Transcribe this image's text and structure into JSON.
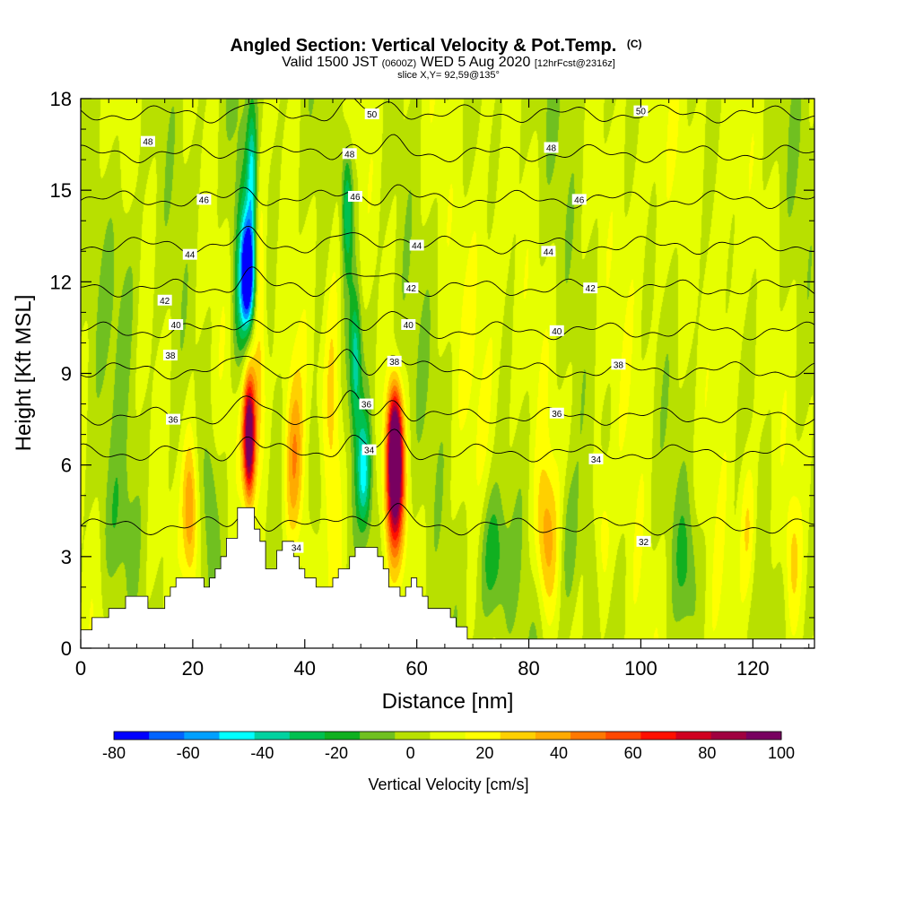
{
  "title": {
    "main": "Angled Section: Vertical Velocity & Pot.Temp.",
    "units": "(C)",
    "valid_prefix": "Valid 1500 JST",
    "valid_z": "(0600Z)",
    "valid_date": "WED 5 Aug 2020",
    "forecast": "[12hrFcst@2316z]",
    "slice": "slice X,Y= 92,59@135°"
  },
  "chart_data": {
    "type": "heatmap",
    "xlabel": "Distance [nm]",
    "ylabel": "Height [Kft MSL]",
    "xlim": [
      0,
      131
    ],
    "ylim": [
      0,
      18
    ],
    "x_ticks": [
      0,
      20,
      40,
      60,
      80,
      100,
      120
    ],
    "y_ticks": [
      0,
      3,
      6,
      9,
      12,
      15,
      18
    ],
    "colorbar": {
      "label": "Vertical Velocity [cm/s]",
      "bounds": [
        -80,
        100
      ],
      "tick_labels": [
        -80,
        -60,
        -40,
        -20,
        0,
        20,
        40,
        60,
        80,
        100
      ],
      "colors": [
        "#0000ff",
        "#0064ff",
        "#00a0ff",
        "#00ffff",
        "#00d2a0",
        "#00c050",
        "#10b020",
        "#70c020",
        "#b8e000",
        "#e6ff00",
        "#ffff00",
        "#ffd000",
        "#ffaa00",
        "#ff7800",
        "#ff4800",
        "#ff1000",
        "#d00020",
        "#a00040",
        "#780060"
      ]
    },
    "contour_levels": [
      32,
      34,
      36,
      38,
      40,
      42,
      44,
      46,
      48,
      50
    ],
    "contour_heights": [
      {
        "level": 32,
        "height": 4.0
      },
      {
        "level": 34,
        "height": 6.4
      },
      {
        "level": 36,
        "height": 7.6
      },
      {
        "level": 38,
        "height": 9.1
      },
      {
        "level": 40,
        "height": 10.4
      },
      {
        "level": 42,
        "height": 11.8
      },
      {
        "level": 44,
        "height": 13.2
      },
      {
        "level": 46,
        "height": 14.7
      },
      {
        "level": 48,
        "height": 16.2
      },
      {
        "level": 50,
        "height": 17.5
      }
    ],
    "contour_labels": [
      {
        "text": "50",
        "x": 52,
        "y": 17.5
      },
      {
        "text": "50",
        "x": 100,
        "y": 17.6
      },
      {
        "text": "48",
        "x": 12,
        "y": 16.6
      },
      {
        "text": "48",
        "x": 48,
        "y": 16.2
      },
      {
        "text": "48",
        "x": 84,
        "y": 16.4
      },
      {
        "text": "46",
        "x": 22,
        "y": 14.7
      },
      {
        "text": "46",
        "x": 49,
        "y": 14.8
      },
      {
        "text": "46",
        "x": 89,
        "y": 14.7
      },
      {
        "text": "44",
        "x": 19.5,
        "y": 12.9
      },
      {
        "text": "44",
        "x": 60,
        "y": 13.2
      },
      {
        "text": "44",
        "x": 83.5,
        "y": 13.0
      },
      {
        "text": "42",
        "x": 15,
        "y": 11.4
      },
      {
        "text": "42",
        "x": 59,
        "y": 11.8
      },
      {
        "text": "42",
        "x": 91,
        "y": 11.8
      },
      {
        "text": "40",
        "x": 17,
        "y": 10.6
      },
      {
        "text": "40",
        "x": 58.5,
        "y": 10.6
      },
      {
        "text": "40",
        "x": 85,
        "y": 10.4
      },
      {
        "text": "38",
        "x": 56,
        "y": 9.4
      },
      {
        "text": "38",
        "x": 96,
        "y": 9.3
      },
      {
        "text": "38",
        "x": 16,
        "y": 9.6
      },
      {
        "text": "36",
        "x": 16.5,
        "y": 7.5
      },
      {
        "text": "36",
        "x": 51,
        "y": 8.0
      },
      {
        "text": "36",
        "x": 85,
        "y": 7.7
      },
      {
        "text": "34",
        "x": 51.5,
        "y": 6.5
      },
      {
        "text": "34",
        "x": 92,
        "y": 6.2
      },
      {
        "text": "34",
        "x": 38.5,
        "y": 3.3
      },
      {
        "text": "32",
        "x": 100.5,
        "y": 3.5
      }
    ],
    "terrain": [
      [
        0,
        0.6
      ],
      [
        2,
        0.6
      ],
      [
        2,
        1.0
      ],
      [
        5,
        1.0
      ],
      [
        5,
        1.3
      ],
      [
        8,
        1.3
      ],
      [
        8,
        1.7
      ],
      [
        12,
        1.7
      ],
      [
        12,
        1.3
      ],
      [
        15,
        1.3
      ],
      [
        15,
        1.7
      ],
      [
        16,
        1.7
      ],
      [
        16,
        2.0
      ],
      [
        17,
        2.0
      ],
      [
        17,
        2.3
      ],
      [
        22,
        2.3
      ],
      [
        22,
        2.0
      ],
      [
        23,
        2.0
      ],
      [
        23,
        2.3
      ],
      [
        24,
        2.3
      ],
      [
        24,
        2.6
      ],
      [
        25,
        2.6
      ],
      [
        25,
        3.0
      ],
      [
        26,
        3.0
      ],
      [
        26,
        3.6
      ],
      [
        28,
        3.6
      ],
      [
        28,
        4.6
      ],
      [
        31,
        4.6
      ],
      [
        31,
        3.9
      ],
      [
        32,
        3.9
      ],
      [
        32,
        3.5
      ],
      [
        33,
        3.5
      ],
      [
        33,
        2.6
      ],
      [
        35,
        2.6
      ],
      [
        35,
        3.2
      ],
      [
        36,
        3.2
      ],
      [
        36,
        3.5
      ],
      [
        38,
        3.5
      ],
      [
        38,
        3.0
      ],
      [
        39,
        3.0
      ],
      [
        39,
        2.6
      ],
      [
        40,
        2.6
      ],
      [
        40,
        2.3
      ],
      [
        42,
        2.3
      ],
      [
        42,
        2.0
      ],
      [
        45,
        2.0
      ],
      [
        45,
        2.3
      ],
      [
        46,
        2.3
      ],
      [
        46,
        2.6
      ],
      [
        48,
        2.6
      ],
      [
        48,
        3.0
      ],
      [
        49,
        3.0
      ],
      [
        49,
        3.3
      ],
      [
        53,
        3.3
      ],
      [
        53,
        3.0
      ],
      [
        54,
        3.0
      ],
      [
        54,
        2.6
      ],
      [
        55,
        2.6
      ],
      [
        55,
        2.0
      ],
      [
        57,
        2.0
      ],
      [
        57,
        1.7
      ],
      [
        58,
        1.7
      ],
      [
        58,
        2.0
      ],
      [
        59,
        2.0
      ],
      [
        59,
        2.3
      ],
      [
        60,
        2.3
      ],
      [
        60,
        2.0
      ],
      [
        61,
        2.0
      ],
      [
        61,
        1.7
      ],
      [
        62,
        1.7
      ],
      [
        62,
        1.3
      ],
      [
        66,
        1.3
      ],
      [
        66,
        1.0
      ],
      [
        67,
        1.0
      ],
      [
        67,
        0.7
      ],
      [
        69,
        0.7
      ],
      [
        69,
        0.3
      ],
      [
        71,
        0.3
      ],
      [
        71,
        0.3
      ],
      [
        131,
        0.3
      ]
    ],
    "velocity_features": [
      {
        "x": 30.0,
        "y": 6.8,
        "sx": 0.7,
        "sy": 1.3,
        "w": 90
      },
      {
        "x": 30.0,
        "y": 8.2,
        "sx": 1.5,
        "sy": 1.8,
        "w": 40
      },
      {
        "x": 29.8,
        "y": 12.3,
        "sx": 0.8,
        "sy": 1.1,
        "w": -85
      },
      {
        "x": 29.0,
        "y": 11.0,
        "sx": 1.3,
        "sy": 2.8,
        "w": -45
      },
      {
        "x": 30.5,
        "y": 15.5,
        "sx": 0.6,
        "sy": 1.5,
        "w": -35
      },
      {
        "x": 32.0,
        "y": 11.5,
        "sx": 0.8,
        "sy": 3.0,
        "w": 22
      },
      {
        "x": 56.0,
        "y": 6.8,
        "sx": 0.9,
        "sy": 1.3,
        "w": 100
      },
      {
        "x": 56.0,
        "y": 5.0,
        "sx": 1.2,
        "sy": 1.5,
        "w": 70
      },
      {
        "x": 50.5,
        "y": 5.8,
        "sx": 0.9,
        "sy": 1.3,
        "w": -45
      },
      {
        "x": 49.0,
        "y": 9.5,
        "sx": 0.7,
        "sy": 1.6,
        "w": -40
      },
      {
        "x": 47.5,
        "y": 14.5,
        "sx": 0.7,
        "sy": 1.5,
        "w": -38
      },
      {
        "x": 45.0,
        "y": 8.0,
        "sx": 1.2,
        "sy": 4.0,
        "w": 25
      },
      {
        "x": 38.0,
        "y": 6.0,
        "sx": 1.3,
        "sy": 2.2,
        "w": 38
      },
      {
        "x": 19.5,
        "y": 4.5,
        "sx": 1.0,
        "sy": 1.8,
        "w": 42
      },
      {
        "x": 23.0,
        "y": 5.0,
        "sx": 0.8,
        "sy": 1.4,
        "w": -14
      },
      {
        "x": 42.0,
        "y": 5.5,
        "sx": 1.0,
        "sy": 1.5,
        "w": -16
      },
      {
        "x": 73.5,
        "y": 3.0,
        "sx": 1.8,
        "sy": 1.6,
        "w": -28
      },
      {
        "x": 83.0,
        "y": 3.6,
        "sx": 1.4,
        "sy": 1.8,
        "w": 34
      },
      {
        "x": 87.0,
        "y": 3.5,
        "sx": 1.2,
        "sy": 1.7,
        "w": -16
      },
      {
        "x": 93.0,
        "y": 3.8,
        "sx": 1.1,
        "sy": 1.8,
        "w": 20
      },
      {
        "x": 108.0,
        "y": 2.8,
        "sx": 1.5,
        "sy": 1.5,
        "w": -18
      },
      {
        "x": 119.0,
        "y": 4.0,
        "sx": 1.1,
        "sy": 1.8,
        "w": 22
      },
      {
        "x": 127.0,
        "y": 3.0,
        "sx": 1.0,
        "sy": 1.6,
        "w": 18
      },
      {
        "x": 6.0,
        "y": 3.8,
        "sx": 2.5,
        "sy": 1.8,
        "w": -12
      },
      {
        "x": 8.0,
        "y": 12.5,
        "sx": 1.8,
        "sy": 2.5,
        "w": -10
      },
      {
        "x": 72.0,
        "y": 12.0,
        "sx": 3.0,
        "sy": 5.0,
        "w": 12
      },
      {
        "x": 100.0,
        "y": 12.0,
        "sx": 3.0,
        "sy": 5.0,
        "w": 10
      },
      {
        "x": 115.0,
        "y": 11.0,
        "sx": 2.5,
        "sy": 5.0,
        "w": 12
      }
    ]
  }
}
